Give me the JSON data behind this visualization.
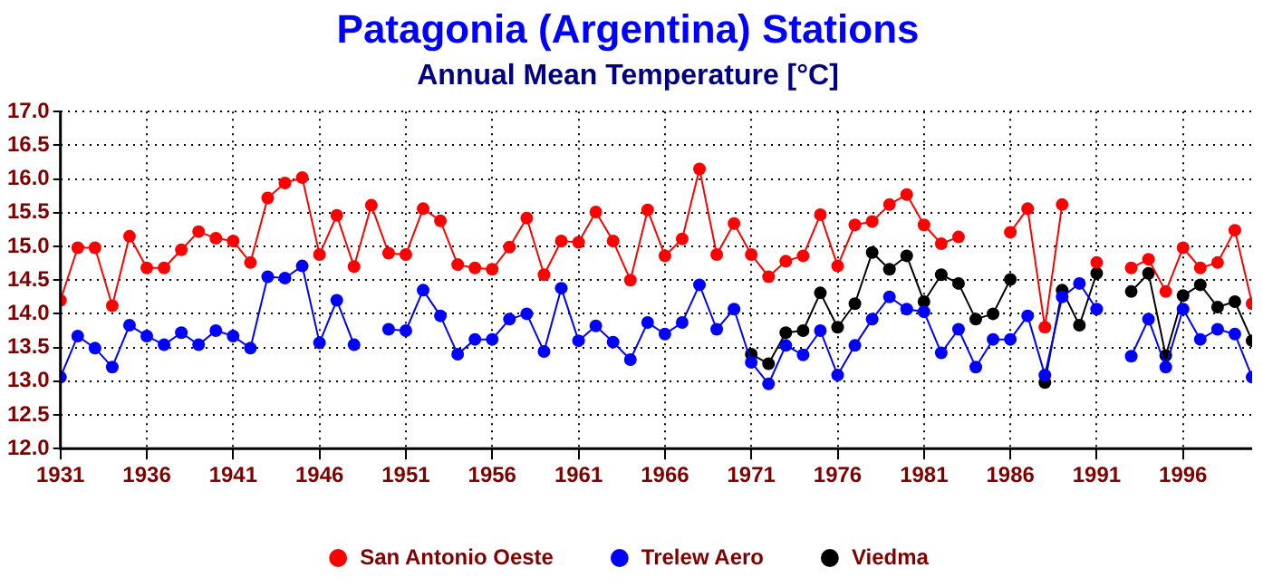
{
  "chart_data": {
    "type": "line",
    "title": "Patagonia (Argentina) Stations",
    "subtitle": "Annual Mean Temperature [°C]",
    "x": [
      1931,
      1932,
      1933,
      1934,
      1935,
      1936,
      1937,
      1938,
      1939,
      1940,
      1941,
      1942,
      1943,
      1944,
      1945,
      1946,
      1947,
      1948,
      1949,
      1950,
      1951,
      1952,
      1953,
      1954,
      1955,
      1956,
      1957,
      1958,
      1959,
      1960,
      1961,
      1962,
      1963,
      1964,
      1965,
      1966,
      1967,
      1968,
      1969,
      1970,
      1971,
      1972,
      1973,
      1974,
      1975,
      1976,
      1977,
      1978,
      1979,
      1980,
      1981,
      1982,
      1983,
      1984,
      1985,
      1986,
      1987,
      1988,
      1989,
      1990,
      1991,
      1992,
      1993,
      1994,
      1995,
      1996,
      1997,
      1998,
      1999,
      2000
    ],
    "series": [
      {
        "name": "San Antonio Oeste",
        "color": "#ff0000",
        "values": [
          14.2,
          14.98,
          14.98,
          14.12,
          15.15,
          14.68,
          14.68,
          14.95,
          15.22,
          15.12,
          15.08,
          14.76,
          15.72,
          15.94,
          16.02,
          14.88,
          15.46,
          14.7,
          15.61,
          14.9,
          14.88,
          15.56,
          15.38,
          14.73,
          14.68,
          14.66,
          14.99,
          15.42,
          14.58,
          15.08,
          15.06,
          15.51,
          15.08,
          14.5,
          15.54,
          14.86,
          15.11,
          16.15,
          14.88,
          15.34,
          14.88,
          14.55,
          14.78,
          14.86,
          15.47,
          14.71,
          15.32,
          15.37,
          15.62,
          15.77,
          15.32,
          15.04,
          15.14,
          null,
          null,
          15.21,
          15.56,
          13.8,
          15.62,
          null,
          14.76,
          null,
          14.68,
          14.81,
          14.33,
          14.98,
          14.68,
          14.76,
          15.24,
          14.15
        ]
      },
      {
        "name": "Trelew Aero",
        "color": "#0000ff",
        "values": [
          13.06,
          13.67,
          13.49,
          13.21,
          13.83,
          13.67,
          13.54,
          13.72,
          13.54,
          13.75,
          13.67,
          13.49,
          14.55,
          14.53,
          14.71,
          13.57,
          14.2,
          13.54,
          null,
          13.77,
          13.75,
          14.35,
          13.97,
          13.4,
          13.62,
          13.62,
          13.92,
          14.0,
          13.44,
          14.38,
          13.6,
          13.82,
          13.58,
          13.32,
          13.87,
          13.7,
          13.87,
          14.43,
          13.77,
          14.07,
          13.28,
          12.96,
          13.53,
          13.39,
          13.75,
          13.09,
          13.53,
          13.92,
          14.25,
          14.07,
          14.03,
          13.42,
          13.77,
          13.21,
          13.62,
          13.62,
          13.97,
          13.09,
          14.25,
          14.45,
          14.07,
          null,
          13.37,
          13.92,
          13.21,
          14.07,
          13.62,
          13.77,
          13.7,
          13.06
        ]
      },
      {
        "name": "Viedma",
        "color": "#000000",
        "x": [
          1971,
          1972,
          1973,
          1974,
          1975,
          1976,
          1977,
          1978,
          1979,
          1980,
          1981,
          1982,
          1983,
          1984,
          1985,
          1986,
          1987,
          1988,
          1989,
          1990,
          1991,
          1992,
          1993,
          1994,
          1995,
          1996,
          1997,
          1998,
          1999,
          2000
        ],
        "values": [
          13.4,
          13.26,
          13.72,
          13.75,
          14.31,
          13.8,
          14.15,
          14.91,
          14.66,
          14.86,
          14.18,
          14.58,
          14.45,
          13.92,
          14.0,
          14.51,
          null,
          12.98,
          14.35,
          13.83,
          14.6,
          null,
          14.33,
          14.6,
          13.38,
          14.27,
          14.43,
          14.1,
          14.18,
          13.6
        ]
      }
    ],
    "xlim": [
      1931,
      2000
    ],
    "xticks": [
      1931,
      1936,
      1941,
      1946,
      1951,
      1956,
      1961,
      1966,
      1971,
      1976,
      1981,
      1986,
      1991,
      1996
    ],
    "ylim": [
      12,
      17
    ],
    "yticks": [
      {
        "value": 12,
        "label": "12.0"
      },
      {
        "value": 12.5,
        "label": "12.5"
      },
      {
        "value": 13,
        "label": "13.0"
      },
      {
        "value": 13.5,
        "label": "13.5"
      },
      {
        "value": 14,
        "label": "14.0"
      },
      {
        "value": 14.5,
        "label": "14.5"
      },
      {
        "value": 15,
        "label": "15.0"
      },
      {
        "value": 15.5,
        "label": "15.5"
      },
      {
        "value": 16,
        "label": "16.0"
      },
      {
        "value": 16.5,
        "label": "16.5"
      },
      {
        "value": 17,
        "label": "17.0"
      }
    ],
    "grid": true,
    "legend": "bottom",
    "marker": "circle",
    "line_style": "solid"
  }
}
